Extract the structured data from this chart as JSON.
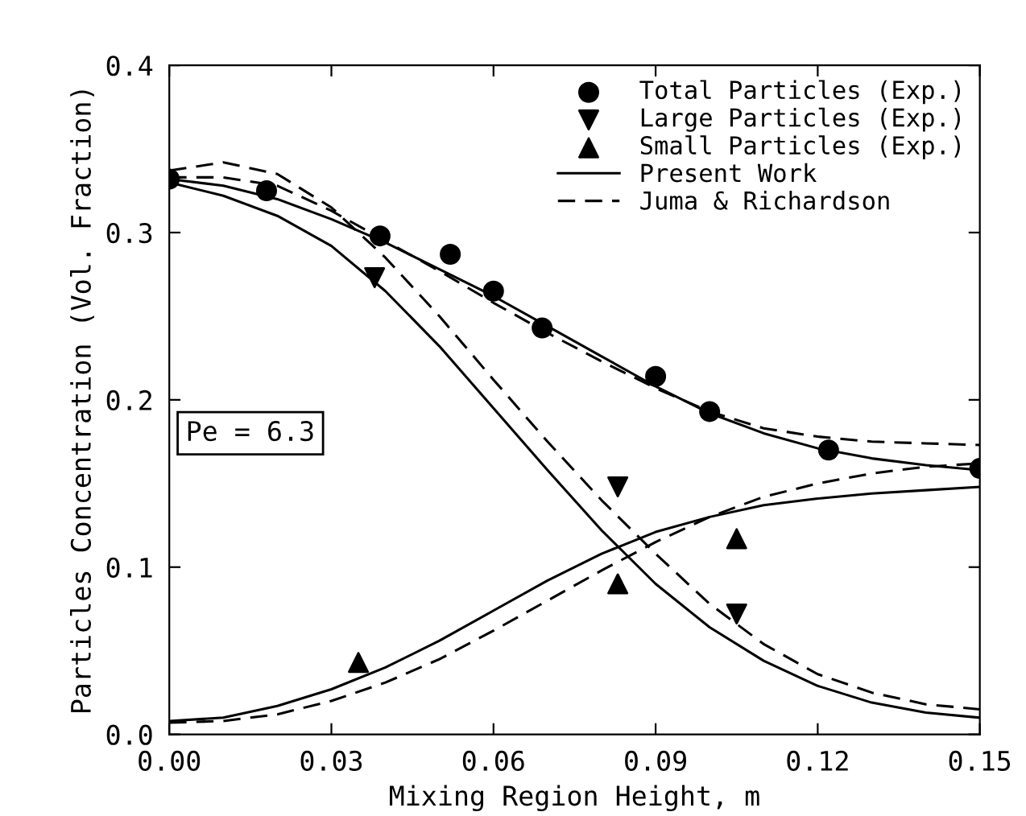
{
  "chart_data": {
    "type": "line",
    "xlabel": "Mixing Region Height, m",
    "ylabel": "Particles Concentration (Vol. Fraction)",
    "xlim": [
      0.0,
      0.15
    ],
    "ylim": [
      0.0,
      0.4
    ],
    "xticks": [
      {
        "value": 0.0,
        "label": "0.00"
      },
      {
        "value": 0.03,
        "label": "0.03"
      },
      {
        "value": 0.06,
        "label": "0.06"
      },
      {
        "value": 0.09,
        "label": "0.09"
      },
      {
        "value": 0.12,
        "label": "0.12"
      },
      {
        "value": 0.15,
        "label": "0.15"
      }
    ],
    "yticks": [
      {
        "value": 0.0,
        "label": "0.0"
      },
      {
        "value": 0.1,
        "label": "0.1"
      },
      {
        "value": 0.2,
        "label": "0.2"
      },
      {
        "value": 0.3,
        "label": "0.3"
      },
      {
        "value": 0.4,
        "label": "0.4"
      }
    ],
    "grid": false,
    "legend": "top right",
    "annotations": [
      "Pe = 6.3"
    ],
    "series": [
      {
        "type": "scatter",
        "name": "Total Particles (Exp.)",
        "color": "#000000",
        "marker": "circle",
        "x": [
          0.0,
          0.018,
          0.039,
          0.052,
          0.06,
          0.069,
          0.09,
          0.1,
          0.122,
          0.15
        ],
        "values": [
          0.332,
          0.325,
          0.298,
          0.287,
          0.265,
          0.243,
          0.214,
          0.193,
          0.17,
          0.159
        ]
      },
      {
        "type": "scatter",
        "name": "Large Particles (Exp.)",
        "color": "#000000",
        "marker": "triangle_down",
        "x": [
          0.038,
          0.083,
          0.105
        ],
        "values": [
          0.273,
          0.148,
          0.072
        ]
      },
      {
        "type": "scatter",
        "name": "Small Particles (Exp.)",
        "color": "#000000",
        "marker": "triangle",
        "x": [
          0.035,
          0.083,
          0.105
        ],
        "values": [
          0.043,
          0.09,
          0.117
        ]
      },
      {
        "name": "Present Work",
        "color": "#000000",
        "line_style": "solid",
        "x": [
          0,
          0.01,
          0.02,
          0.03,
          0.04,
          0.05,
          0.06,
          0.07,
          0.08,
          0.09,
          0.1,
          0.11,
          0.12,
          0.13,
          0.14,
          0.15
        ],
        "values": [
          0.332,
          0.328,
          0.32,
          0.308,
          0.294,
          0.278,
          0.262,
          0.244,
          0.226,
          0.208,
          0.192,
          0.18,
          0.171,
          0.165,
          0.161,
          0.158
        ]
      },
      {
        "name": "Juma & Richardson",
        "color": "#000000",
        "line_style": "dashed",
        "x": [
          0,
          0.01,
          0.02,
          0.03,
          0.04,
          0.05,
          0.06,
          0.07,
          0.08,
          0.09,
          0.1,
          0.11,
          0.12,
          0.13,
          0.14,
          0.15
        ],
        "values": [
          0.333,
          0.333,
          0.328,
          0.313,
          0.295,
          0.277,
          0.258,
          0.24,
          0.223,
          0.207,
          0.193,
          0.183,
          0.178,
          0.175,
          0.174,
          0.173
        ]
      },
      {
        "type": "line",
        "color": "#000000",
        "line_style": "solid",
        "x": [
          0,
          0.01,
          0.02,
          0.03,
          0.04,
          0.05,
          0.06,
          0.07,
          0.08,
          0.09,
          0.1,
          0.11,
          0.12,
          0.13,
          0.14,
          0.15
        ],
        "values": [
          0.33,
          0.322,
          0.31,
          0.292,
          0.265,
          0.232,
          0.195,
          0.158,
          0.122,
          0.09,
          0.064,
          0.044,
          0.029,
          0.019,
          0.013,
          0.01
        ]
      },
      {
        "type": "line",
        "color": "#000000",
        "line_style": "dashed",
        "x": [
          0,
          0.01,
          0.02,
          0.03,
          0.04,
          0.05,
          0.06,
          0.07,
          0.08,
          0.09,
          0.1,
          0.11,
          0.12,
          0.13,
          0.14,
          0.15
        ],
        "values": [
          0.337,
          0.342,
          0.335,
          0.315,
          0.285,
          0.25,
          0.212,
          0.175,
          0.14,
          0.108,
          0.078,
          0.054,
          0.036,
          0.025,
          0.018,
          0.015
        ]
      },
      {
        "type": "line",
        "color": "#000000",
        "line_style": "solid",
        "x": [
          0,
          0.01,
          0.02,
          0.03,
          0.04,
          0.05,
          0.06,
          0.07,
          0.08,
          0.09,
          0.1,
          0.11,
          0.12,
          0.13,
          0.14,
          0.15
        ],
        "values": [
          0.008,
          0.01,
          0.017,
          0.027,
          0.04,
          0.056,
          0.074,
          0.092,
          0.108,
          0.121,
          0.13,
          0.137,
          0.141,
          0.144,
          0.146,
          0.148
        ]
      },
      {
        "type": "line",
        "color": "#000000",
        "line_style": "dashed",
        "x": [
          0,
          0.01,
          0.02,
          0.03,
          0.04,
          0.05,
          0.06,
          0.07,
          0.08,
          0.09,
          0.1,
          0.11,
          0.12,
          0.13,
          0.14,
          0.15
        ],
        "values": [
          0.007,
          0.008,
          0.012,
          0.02,
          0.031,
          0.045,
          0.062,
          0.08,
          0.098,
          0.115,
          0.13,
          0.142,
          0.15,
          0.156,
          0.16,
          0.162
        ]
      }
    ]
  }
}
